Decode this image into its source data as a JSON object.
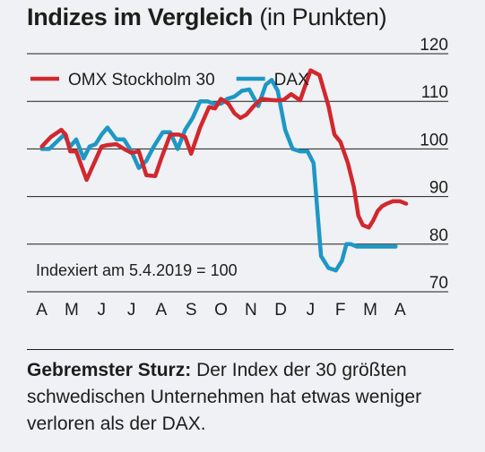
{
  "chart_data": {
    "type": "line",
    "title": "Indizes im Vergleich",
    "subtitle": "(in Punkten)",
    "categories": [
      "A",
      "M",
      "J",
      "J",
      "A",
      "S",
      "O",
      "N",
      "D",
      "J",
      "F",
      "M",
      "A"
    ],
    "ylim": [
      70,
      120
    ],
    "yticks": [
      70,
      80,
      90,
      100,
      110,
      120
    ],
    "y_axis_position": "right",
    "grid": true,
    "legend_placement": "top-left",
    "annotation": "Indexiert am 5.4.2019 = 100",
    "series": [
      {
        "name": "OMX Stockholm 30",
        "color": "#d0282e",
        "x": [
          0,
          0.3,
          0.65,
          0.8,
          0.95,
          1.15,
          1.5,
          1.75,
          2,
          2.2,
          2.5,
          2.75,
          3,
          3.25,
          3.5,
          3.8,
          4,
          4.3,
          4.6,
          4.8,
          5,
          5.3,
          5.6,
          5.8,
          6,
          6.25,
          6.45,
          6.65,
          6.85,
          7.1,
          7.35,
          7.65,
          7.85,
          8.1,
          8.35,
          8.65,
          9,
          9.3,
          9.6,
          9.8,
          10,
          10.25,
          10.45,
          10.6,
          10.75,
          10.95,
          11.1,
          11.25,
          11.4,
          11.55,
          11.75,
          12,
          12.2
        ],
        "values": [
          100.5,
          102.5,
          104,
          103,
          99.5,
          99.5,
          93.5,
          97,
          100.5,
          100.8,
          101,
          100,
          99.2,
          99.5,
          94.5,
          94.3,
          98,
          103,
          103,
          102.5,
          99,
          104.5,
          108.8,
          108.5,
          110.5,
          109.5,
          107.5,
          106.5,
          107.2,
          109,
          110.5,
          110.3,
          110.2,
          110.3,
          111.5,
          110.2,
          116.5,
          115.5,
          109,
          103,
          101.5,
          97,
          92,
          86,
          84,
          83.5,
          85,
          87,
          88,
          88.5,
          89,
          89,
          88.5
        ]
      },
      {
        "name": "DAX",
        "color": "#1e97c5",
        "x": [
          0,
          0.25,
          0.5,
          0.75,
          0.95,
          1.15,
          1.4,
          1.6,
          1.8,
          2,
          2.2,
          2.5,
          2.75,
          3,
          3.25,
          3.5,
          3.75,
          4.05,
          4.3,
          4.55,
          4.8,
          5.05,
          5.3,
          5.55,
          5.75,
          6,
          6.2,
          6.45,
          6.7,
          6.95,
          7.25,
          7.5,
          7.7,
          7.9,
          8.15,
          8.4,
          8.65,
          8.9,
          9.1,
          9.35,
          9.6,
          9.85,
          10.05,
          10.2,
          10.35,
          10.55,
          10.75,
          10.95,
          11.15,
          11.35,
          11.6,
          11.85
        ],
        "values": [
          100,
          100,
          101.5,
          103,
          100.5,
          102,
          98,
          100.5,
          101,
          103,
          104.5,
          102,
          102,
          99.5,
          96,
          97.5,
          100.5,
          103.5,
          103.5,
          100,
          104,
          106.5,
          110,
          110,
          109.5,
          109.5,
          110.5,
          111,
          112.2,
          112.5,
          109,
          113.5,
          114.5,
          112.2,
          104,
          100,
          99.5,
          99.5,
          97,
          77.5,
          75,
          74.5,
          76.5,
          80,
          80,
          79.5,
          79.5,
          79.5,
          79.5,
          79.5,
          79.5,
          79.5
        ]
      }
    ]
  },
  "caption": {
    "lead": "Gebremster Sturz:",
    "text": "Der Index der 30 größten schwedischen Unternehmen hat etwas weniger verloren als der DAX."
  }
}
